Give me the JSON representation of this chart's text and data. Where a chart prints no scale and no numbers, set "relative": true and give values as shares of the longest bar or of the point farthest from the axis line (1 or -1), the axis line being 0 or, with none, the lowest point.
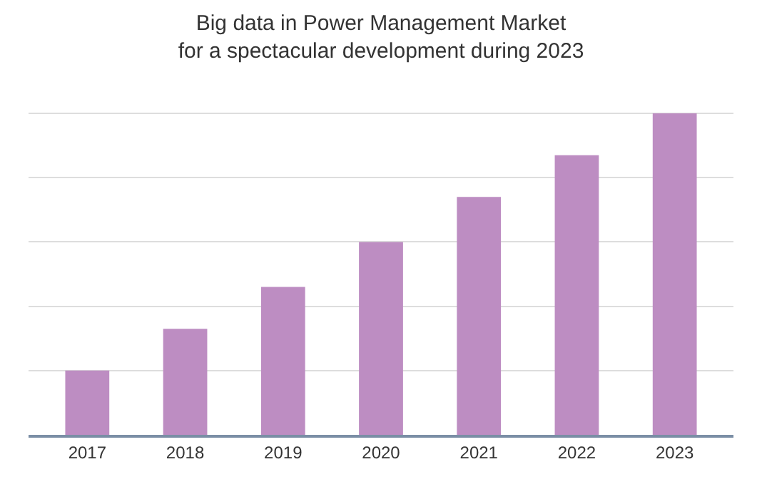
{
  "chart_data": {
    "type": "bar",
    "title": "Big data in Power Management Market for a spectacular development during 2023",
    "categories": [
      "2017",
      "2018",
      "2019",
      "2020",
      "2021",
      "2022",
      "2023"
    ],
    "values": [
      0.2,
      0.33,
      0.46,
      0.6,
      0.74,
      0.87,
      1
    ],
    "color": "#bd8dc2",
    "relative": true,
    "grid": "y"
  }
}
